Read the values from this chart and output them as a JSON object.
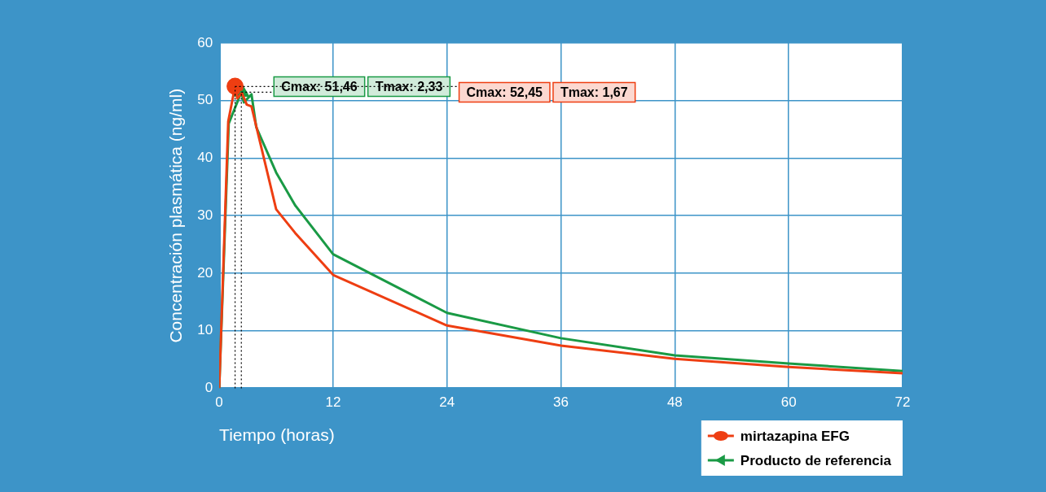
{
  "chart_data": {
    "type": "line",
    "xlabel": "Tiempo (horas)",
    "ylabel": "Concentración plasmática (ng/ml)",
    "xlim": [
      0,
      72
    ],
    "xticks": [
      0,
      12,
      24,
      36,
      48,
      60,
      72
    ],
    "ylim": [
      0,
      60
    ],
    "yticks": [
      0,
      10,
      20,
      30,
      40,
      50,
      60
    ],
    "grid": true,
    "legend": "bottom right",
    "line_style": "solid",
    "series": [
      {
        "name": "mirtazapina EFG",
        "color": "#ee3e12",
        "x": [
          0,
          0.95,
          1.67,
          1.9,
          2.4,
          2.9,
          3.4,
          6,
          8,
          12,
          24,
          36,
          48,
          60,
          72
        ],
        "values": [
          0,
          46.4,
          52.5,
          50.4,
          51.3,
          49.3,
          49,
          31.1,
          27,
          19.7,
          10.9,
          7.4,
          5.1,
          3.7,
          2.6
        ]
      },
      {
        "name": "Producto de referencia",
        "color": "#1a9a45",
        "x": [
          0,
          1,
          2.33,
          2.6,
          3.4,
          3.9,
          6,
          8,
          12,
          24,
          36,
          48,
          60,
          72
        ],
        "values": [
          0,
          46,
          51.5,
          49.7,
          51.1,
          45.4,
          37.5,
          31.8,
          23.3,
          13.1,
          8.7,
          5.7,
          4.3,
          3
        ]
      },
      {
        "type": "scatter",
        "color": "#ee3e12",
        "marker": "circle",
        "x": [
          1.67
        ],
        "values": [
          52.5
        ]
      },
      {
        "type": "scatter",
        "color": "#1a9a45",
        "marker": "triangle",
        "x": [
          2.33
        ],
        "values": [
          51.5
        ]
      }
    ],
    "ref_lines": [
      {
        "axis": "y",
        "value": 51.46,
        "label": "Cmax: 51,46",
        "color": "#000000",
        "line_style": "dotted"
      },
      {
        "axis": "x",
        "value": 2.33,
        "color": "#000000",
        "line_style": "dotted"
      },
      {
        "axis": "y",
        "value": 52.45,
        "label": "Cmax: 52,45",
        "color": "#000000",
        "line_style": "dotted"
      },
      {
        "axis": "x",
        "value": 1.67,
        "color": "#000000",
        "line_style": "dotted"
      }
    ],
    "annotations": [
      "Tmax: 2,33",
      "Tmax: 1,67"
    ]
  }
}
